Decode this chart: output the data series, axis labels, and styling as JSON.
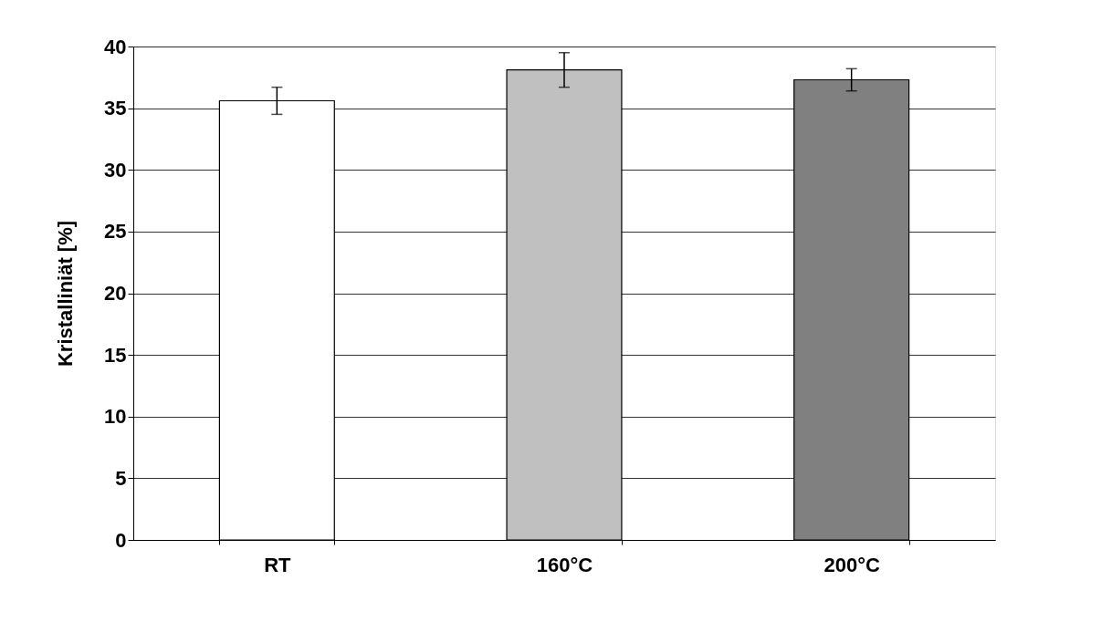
{
  "chart_data": {
    "type": "bar",
    "ylabel": "Kristalliniät [%]",
    "categories": [
      "RT",
      "160°C",
      "200°C"
    ],
    "values": [
      35.6,
      38.1,
      37.3
    ],
    "colors": [
      "#ffffff",
      "#c0c0c0",
      "#808080"
    ],
    "errors": [
      1.1,
      1.4,
      0.9
    ],
    "ylim": [
      0,
      40
    ],
    "yticks": [
      0,
      5,
      10,
      15,
      20,
      25,
      30,
      35,
      40
    ],
    "grid": "y"
  }
}
